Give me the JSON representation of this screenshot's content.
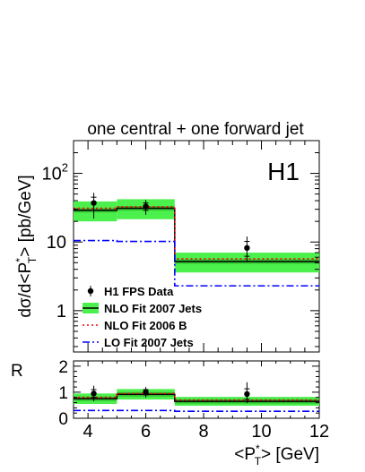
{
  "chart_data": {
    "type": "step",
    "title": "one central + one forward jet",
    "experiment_label": "H1",
    "xlabel": "<P*T> [GeV]",
    "xlabel_parts": {
      "open": "<P",
      "sup": "*",
      "sub": "T",
      "close": "> [GeV]"
    },
    "ylabel": "dσ/d<P*T> [pb/GeV]",
    "ylabel_parts": {
      "pre": "dσ/d<P",
      "sup": "*",
      "sub": "T",
      "post": "> [pb/GeV]"
    },
    "ratio_label": "R",
    "x_range": [
      3.5,
      12
    ],
    "x_ticks": [
      4,
      6,
      8,
      10,
      12
    ],
    "x_tick_labels": [
      "4",
      "6",
      "8",
      "10",
      "12"
    ],
    "y_range": [
      0.25,
      300
    ],
    "y_scale": "log",
    "y_tick_labels": [
      {
        "value": 100,
        "base": "10",
        "exp": "2"
      },
      {
        "value": 10,
        "base": "10",
        "exp": ""
      },
      {
        "value": 1,
        "base": "1",
        "exp": ""
      }
    ],
    "ratio_range": [
      0,
      2.2
    ],
    "ratio_ticks": [
      0,
      1,
      2
    ],
    "ratio_tick_labels": [
      "0",
      "1",
      "2"
    ],
    "bins": [
      [
        3.5,
        5
      ],
      [
        5,
        7
      ],
      [
        7,
        12
      ]
    ],
    "legend_position": "bottom-left",
    "series": [
      {
        "name": "H1 FPS Data",
        "kind": "points",
        "color": "#000000",
        "x": [
          4.2,
          6.0,
          9.5
        ],
        "y": [
          37,
          33,
          8.2
        ],
        "err_stat_lo": [
          8,
          4,
          2.0
        ],
        "err_stat_hi": [
          8,
          4,
          2.0
        ],
        "err_tot_lo": [
          15,
          8,
          2.9
        ],
        "err_tot_hi": [
          15,
          8,
          3.8
        ]
      },
      {
        "name": "NLO Fit 2007 Jets",
        "kind": "band",
        "color": "#00c000",
        "band_color": "#4cf04c",
        "y": [
          29,
          31,
          5.2
        ],
        "band_lo": [
          20,
          21.5,
          3.6
        ],
        "band_hi": [
          39,
          42,
          7.0
        ]
      },
      {
        "name": "NLO Fit 2006 B",
        "kind": "line",
        "color": "#ff0000",
        "dash": "dotted",
        "y": [
          31,
          32.5,
          5.7
        ]
      },
      {
        "name": "LO Fit 2007 Jets",
        "kind": "line",
        "color": "#0000ff",
        "dash": "dashdot",
        "y": [
          10.5,
          10.2,
          2.3
        ]
      }
    ],
    "ratio": {
      "data": {
        "x": [
          4.2,
          6.0,
          9.5
        ],
        "y": [
          0.95,
          1.0,
          0.93
        ],
        "err_stat_lo": [
          0.15,
          0.1,
          0.2
        ],
        "err_stat_hi": [
          0.15,
          0.1,
          0.2
        ],
        "err_tot_lo": [
          0.3,
          0.2,
          0.35
        ],
        "err_tot_hi": [
          0.3,
          0.2,
          0.45
        ]
      },
      "nlo07": {
        "y": [
          0.75,
          0.92,
          0.65
        ],
        "band_lo": [
          0.55,
          0.72,
          0.48
        ],
        "band_hi": [
          0.95,
          1.12,
          0.82
        ]
      },
      "nlo06": {
        "y": [
          0.8,
          0.95,
          0.7
        ]
      },
      "lo07": {
        "y": [
          0.3,
          0.3,
          0.27
        ]
      }
    }
  }
}
